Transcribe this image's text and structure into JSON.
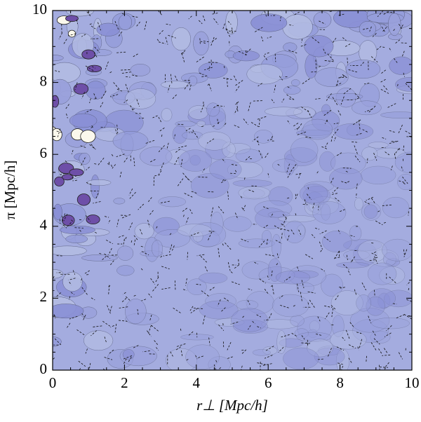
{
  "chart_data": {
    "type": "contour",
    "xlabel": "r⊥ [Mpc/h]",
    "ylabel": "π [Mpc/h]",
    "xlim": [
      0,
      10
    ],
    "ylim": [
      0,
      10
    ],
    "xticks": [
      0,
      2,
      4,
      6,
      8,
      10
    ],
    "yticks": [
      0,
      2,
      4,
      6,
      8,
      10
    ],
    "color": "#a4acdf"
  }
}
